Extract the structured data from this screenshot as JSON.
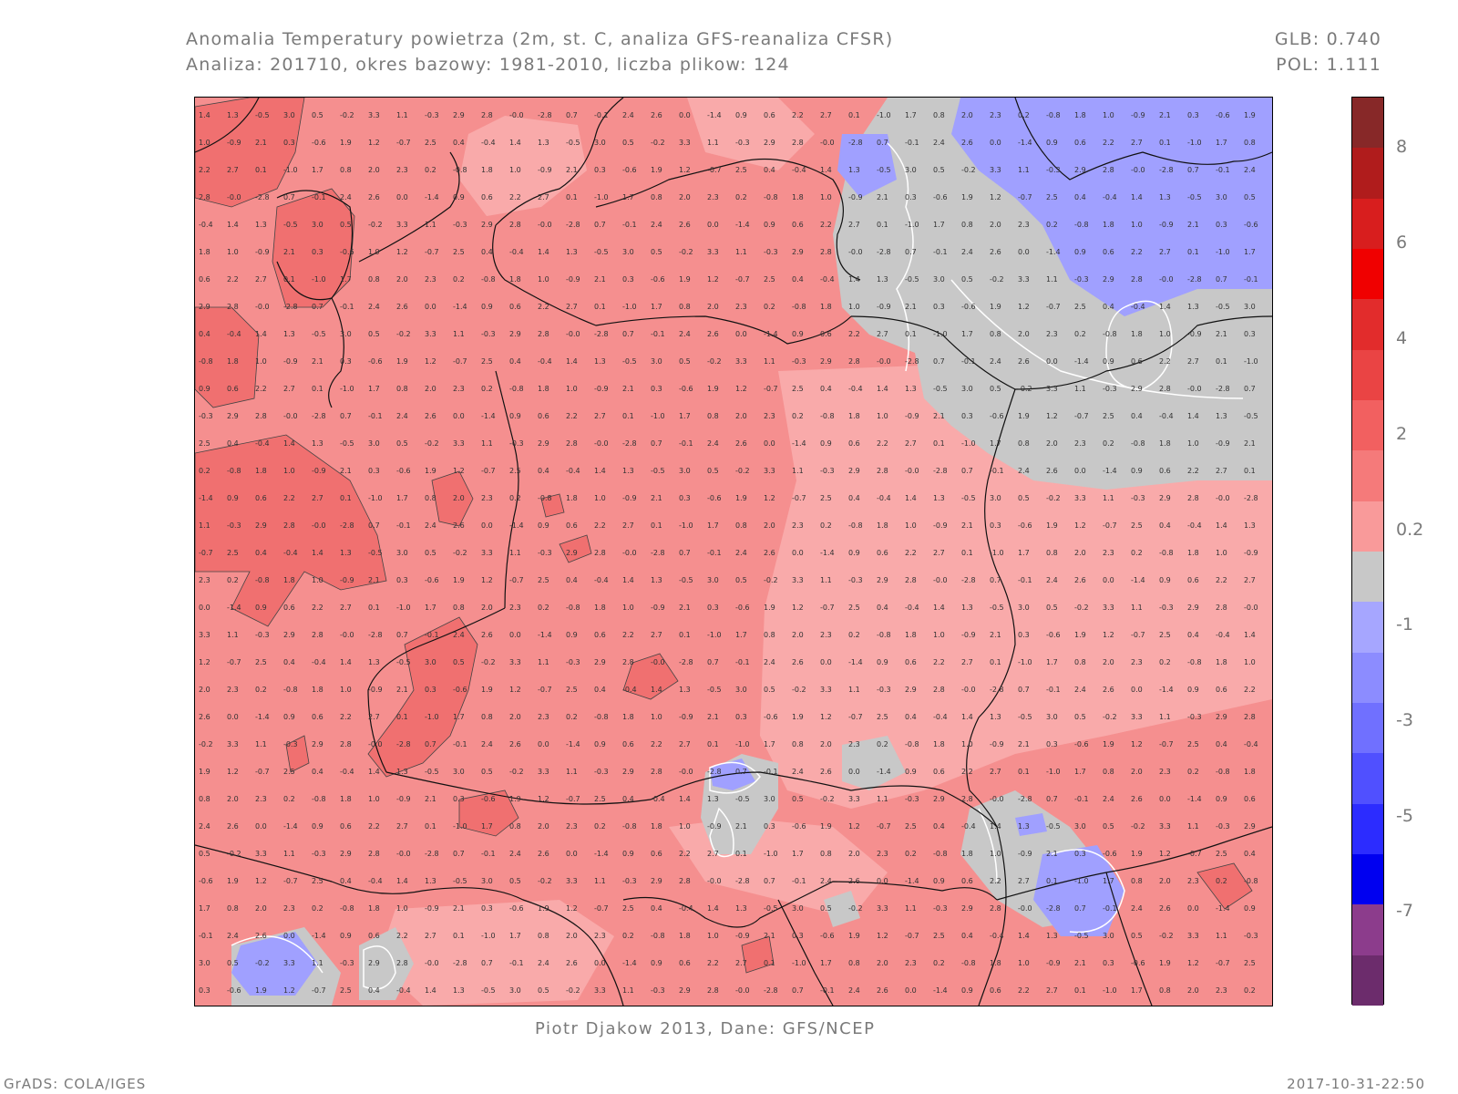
{
  "header": {
    "title_line1": "Anomalia Temperatury powietrza (2m, st. C, analiza GFS-reanaliza CFSR)",
    "title_line2": "Analiza: 201710, okres bazowy: 1981-2010, liczba plikow: 124",
    "glb": "GLB: 0.740",
    "pol": "POL: 1.111"
  },
  "credit": "Piotr Djakow 2013, Dane: GFS/NCEP",
  "footer": {
    "left": "GrADS: COLA/IGES",
    "right": "2017-10-31-22:50"
  },
  "colorbar": {
    "labels": [
      "8",
      "6",
      "4",
      "2",
      "0.2",
      "-1",
      "-3",
      "-5",
      "-7"
    ],
    "colors": [
      "#872828",
      "#b01c1c",
      "#d81e1e",
      "#f00000",
      "#e22c2c",
      "#ea4444",
      "#f26060",
      "#f57a7a",
      "#f99a9a",
      "#c8c8c8",
      "#a6a6ff",
      "#8c8cff",
      "#7070ff",
      "#5050ff",
      "#2c2cff",
      "#0000f0",
      "#8c3c8c",
      "#6c2c6c"
    ]
  },
  "map_colors": {
    "anomaly_0_2_to_2": "#f58f8f",
    "anomaly_2_plus": "#f07070",
    "anomaly_weak": "#f9aaaa",
    "near_zero_grey": "#c8c8c8",
    "negative_blue": "#a0a0ff"
  },
  "map_samples": [
    {
      "label": "1.4"
    },
    {
      "label": "1.9"
    },
    {
      "label": "1.8"
    },
    {
      "label": "1.7"
    },
    {
      "label": "0.9"
    },
    {
      "label": "0.7"
    },
    {
      "label": "1.1"
    },
    {
      "label": "1.3"
    },
    {
      "label": "1.2"
    },
    {
      "label": "1.0"
    },
    {
      "label": "0.8"
    },
    {
      "label": "0.6"
    },
    {
      "label": "-0.1"
    },
    {
      "label": "-0.3"
    },
    {
      "label": "-0.5"
    },
    {
      "label": "-0.7"
    },
    {
      "label": "-0.9"
    },
    {
      "label": "2.0"
    },
    {
      "label": "2.2"
    },
    {
      "label": "2.4"
    },
    {
      "label": "2.9"
    },
    {
      "label": "3.0"
    },
    {
      "label": "2.5"
    },
    {
      "label": "2.1"
    },
    {
      "label": "2.3"
    },
    {
      "label": "2.7"
    },
    {
      "label": "2.6"
    },
    {
      "label": "2.8"
    },
    {
      "label": "0.5"
    },
    {
      "label": "0.4"
    },
    {
      "label": "0.3"
    },
    {
      "label": "0.2"
    },
    {
      "label": "0.1"
    },
    {
      "label": "0.0"
    },
    {
      "label": "-0.0"
    },
    {
      "label": "-0.2"
    },
    {
      "label": "-0.4"
    },
    {
      "label": "-0.6"
    },
    {
      "label": "-0.8"
    },
    {
      "label": "-1.0"
    },
    {
      "label": "-1.4"
    },
    {
      "label": "-2.8"
    },
    {
      "label": "3.3"
    }
  ]
}
